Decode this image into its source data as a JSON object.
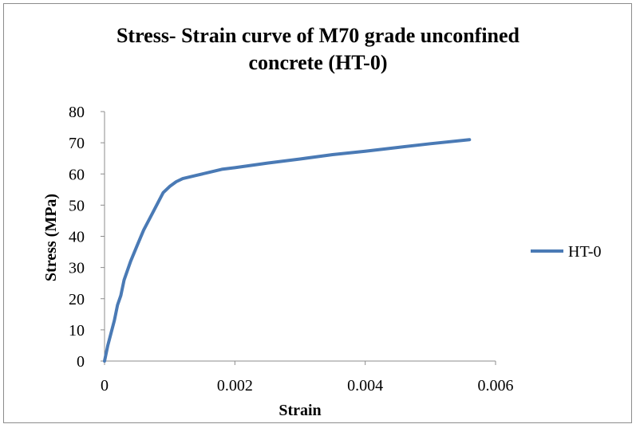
{
  "chart_data": {
    "type": "line",
    "title_line1": "Stress- Strain curve of M70 grade unconfined",
    "title_line2": "concrete (HT-0)",
    "xlabel": "Strain",
    "ylabel": "Stress (MPa)",
    "xlim": [
      0,
      0.006
    ],
    "ylim": [
      0,
      80
    ],
    "x_ticks": [
      0,
      0.002,
      0.004,
      0.006
    ],
    "x_tick_labels": [
      "0",
      "0.002",
      "0.004",
      "0.006"
    ],
    "y_ticks": [
      0,
      10,
      20,
      30,
      40,
      50,
      60,
      70,
      80
    ],
    "y_tick_labels": [
      "0",
      "10",
      "20",
      "30",
      "40",
      "50",
      "60",
      "70",
      "80"
    ],
    "grid": false,
    "legend_position": "right",
    "series": [
      {
        "name": "HT-0",
        "color": "#4a7ab5",
        "x": [
          0,
          5e-05,
          0.0001,
          0.00015,
          0.0002,
          0.00025,
          0.0003,
          0.0004,
          0.0005,
          0.0006,
          0.0007,
          0.0008,
          0.0009,
          0.001,
          0.0011,
          0.0012,
          0.0014,
          0.0016,
          0.0018,
          0.002,
          0.0025,
          0.003,
          0.0035,
          0.004,
          0.0045,
          0.005,
          0.0056
        ],
        "y": [
          0,
          5,
          9,
          13,
          18,
          21,
          26,
          32,
          37,
          42,
          46,
          50,
          54,
          56,
          57.5,
          58.5,
          59.5,
          60.5,
          61.5,
          62,
          63.5,
          64.8,
          66.2,
          67.3,
          68.5,
          69.7,
          71
        ]
      }
    ]
  }
}
